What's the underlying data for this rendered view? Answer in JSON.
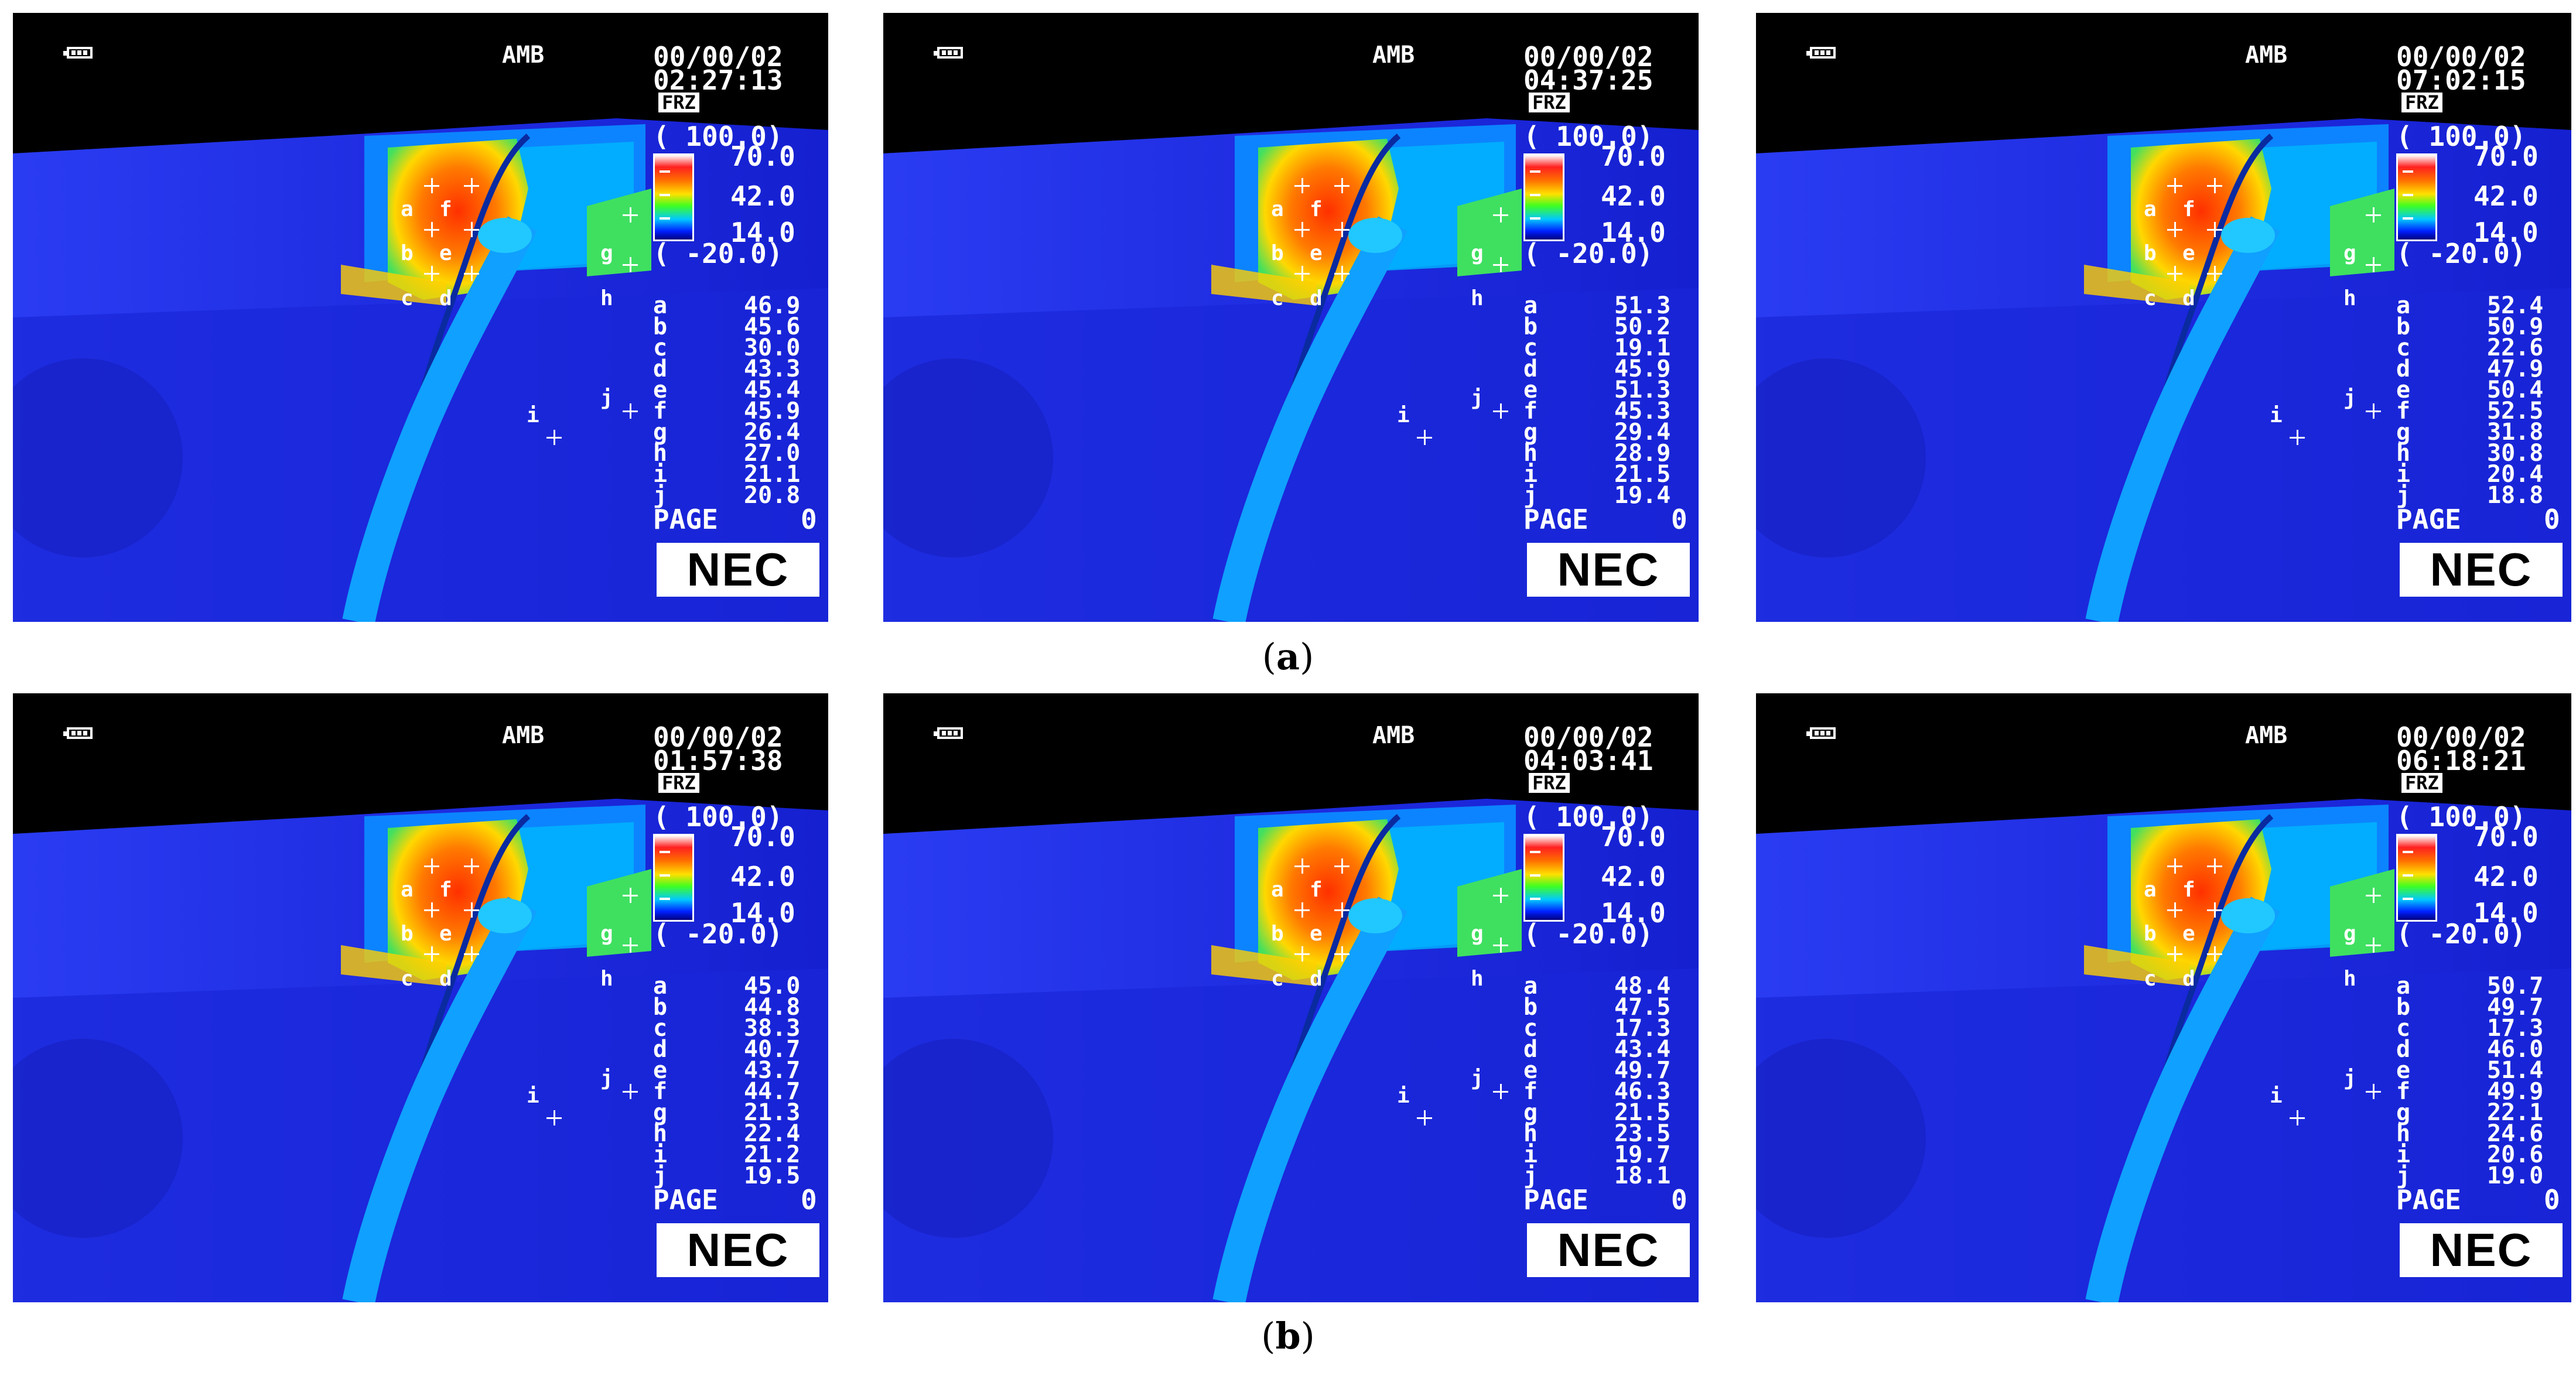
{
  "figures": [
    {
      "row": "a",
      "time": "02:27:13",
      "values": [
        "46.9",
        "45.6",
        "30.0",
        "43.3",
        "45.4",
        "45.9",
        "26.4",
        "27.0",
        "21.1",
        "20.8"
      ]
    },
    {
      "row": "a",
      "time": "04:37:25",
      "values": [
        "51.3",
        "50.2",
        "19.1",
        "45.9",
        "51.3",
        "45.3",
        "29.4",
        "28.9",
        "21.5",
        "19.4"
      ]
    },
    {
      "row": "a",
      "time": "07:02:15",
      "values": [
        "52.4",
        "50.9",
        "22.6",
        "47.9",
        "50.4",
        "52.5",
        "31.8",
        "30.8",
        "20.4",
        "18.8"
      ]
    },
    {
      "row": "b",
      "time": "01:57:38",
      "values": [
        "45.0",
        "44.8",
        "38.3",
        "40.7",
        "43.7",
        "44.7",
        "21.3",
        "22.4",
        "21.2",
        "19.5"
      ]
    },
    {
      "row": "b",
      "time": "04:03:41",
      "values": [
        "48.4",
        "47.5",
        "17.3",
        "43.4",
        "49.7",
        "46.3",
        "21.5",
        "23.5",
        "19.7",
        "18.1"
      ]
    },
    {
      "row": "b",
      "time": "06:18:21",
      "values": [
        "50.7",
        "49.7",
        "17.3",
        "46.0",
        "51.4",
        "49.9",
        "22.1",
        "24.6",
        "20.6",
        "19.0"
      ]
    }
  ],
  "common": {
    "date": "00/00/02",
    "mode": "AMB",
    "freeze": "FRZ",
    "scale_max_bracket": "( 100.0)",
    "scale_high": "70.0",
    "scale_mid": "42.0",
    "scale_low": "14.0",
    "scale_min_bracket": "( -20.0)",
    "page_label": "PAGE",
    "page_number": "0",
    "brand": "NEC",
    "point_labels": [
      "a",
      "b",
      "c",
      "d",
      "e",
      "f",
      "g",
      "h",
      "i",
      "j"
    ]
  },
  "captions": {
    "a": "a",
    "b": "b"
  },
  "colors": {
    "cold": "#0a1ee6",
    "mid": "#00c8ff",
    "warm": "#ffe000",
    "hot": "#ff5000",
    "background": "#000000"
  }
}
